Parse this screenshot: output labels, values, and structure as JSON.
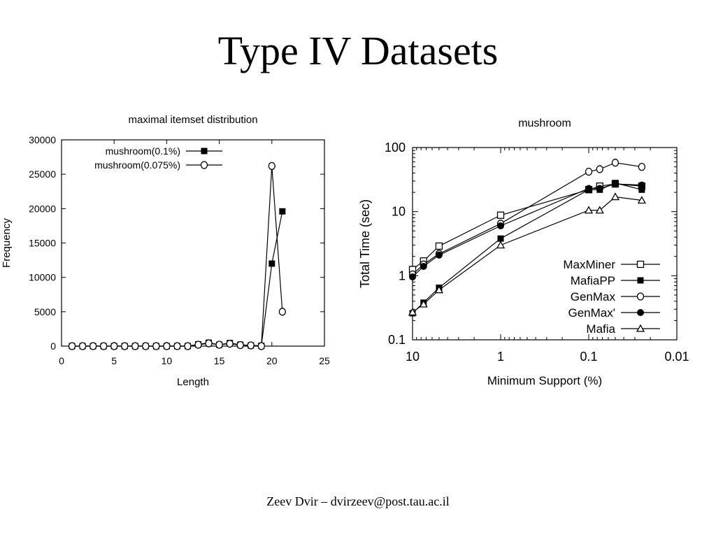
{
  "slide": {
    "title": "Type IV Datasets",
    "footer": "Zeev Dvir – dvirzeev@post.tau.ac.il"
  },
  "chart_data": [
    {
      "type": "line",
      "title": "maximal itemset distribution",
      "xlabel": "Length",
      "ylabel": "Frequency",
      "xlim": [
        0,
        25
      ],
      "ylim": [
        0,
        30000
      ],
      "xticks": [
        0,
        5,
        10,
        15,
        20,
        25
      ],
      "yticks": [
        0,
        5000,
        10000,
        15000,
        20000,
        25000,
        30000
      ],
      "grid": false,
      "legend": "top-left",
      "series": [
        {
          "name": "mushroom(0.1%)",
          "marker": "filled-square",
          "x": [
            1,
            2,
            3,
            4,
            5,
            6,
            7,
            8,
            9,
            10,
            11,
            12,
            13,
            14,
            15,
            16,
            17,
            18,
            19,
            20,
            21
          ],
          "y": [
            0,
            0,
            0,
            0,
            0,
            0,
            0,
            0,
            0,
            0,
            0,
            0,
            250,
            500,
            200,
            450,
            200,
            100,
            50,
            12000,
            19600
          ]
        },
        {
          "name": "mushroom(0.075%)",
          "marker": "open-circle",
          "x": [
            1,
            2,
            3,
            4,
            5,
            6,
            7,
            8,
            9,
            10,
            11,
            12,
            13,
            14,
            15,
            16,
            17,
            18,
            19,
            20,
            21
          ],
          "y": [
            0,
            0,
            0,
            0,
            0,
            0,
            0,
            0,
            0,
            0,
            0,
            0,
            200,
            400,
            200,
            350,
            150,
            100,
            0,
            26200,
            5000
          ]
        }
      ]
    },
    {
      "type": "line",
      "title": "mushroom",
      "xlabel": "Minimum Support (%)",
      "ylabel": "Total Time (sec)",
      "x_scale": "log-reversed",
      "y_scale": "log",
      "xlim": [
        10,
        0.01
      ],
      "ylim": [
        0.1,
        100
      ],
      "xticks": [
        10,
        1,
        0.1,
        0.01
      ],
      "xtick_labels": [
        "10",
        "1",
        "0.1",
        "0.01"
      ],
      "yticks": [
        0.1,
        1,
        10,
        100
      ],
      "ytick_labels": [
        "0.1",
        "1",
        "10",
        "100"
      ],
      "grid": false,
      "legend": "bottom-right",
      "series": [
        {
          "name": "MaxMiner",
          "marker": "open-square",
          "x": [
            10,
            7.5,
            5,
            1,
            0.1,
            0.075,
            0.05,
            0.025
          ],
          "y": [
            1.25,
            1.7,
            2.9,
            8.8,
            22,
            25,
            27,
            25
          ]
        },
        {
          "name": "MafiaPP",
          "marker": "filled-square",
          "x": [
            10,
            7.5,
            5,
            1,
            0.1,
            0.075,
            0.05,
            0.025
          ],
          "y": [
            0.26,
            0.38,
            0.65,
            3.8,
            22,
            22,
            28,
            22
          ]
        },
        {
          "name": "GenMax",
          "marker": "open-circle",
          "x": [
            10,
            7.5,
            5,
            1,
            0.1,
            0.075,
            0.05,
            0.025
          ],
          "y": [
            1.05,
            1.5,
            2.2,
            6.5,
            42,
            46,
            58,
            50
          ]
        },
        {
          "name": "GenMax'",
          "marker": "filled-circle",
          "x": [
            10,
            7.5,
            5,
            1,
            0.1,
            0.075,
            0.05,
            0.025
          ],
          "y": [
            0.96,
            1.4,
            2.1,
            6.0,
            23,
            23,
            27,
            26
          ]
        },
        {
          "name": "Mafia",
          "marker": "open-triangle",
          "x": [
            10,
            7.5,
            5,
            1,
            0.1,
            0.075,
            0.05,
            0.025
          ],
          "y": [
            0.27,
            0.36,
            0.6,
            3.0,
            10.5,
            10.5,
            17,
            15
          ]
        }
      ]
    }
  ]
}
